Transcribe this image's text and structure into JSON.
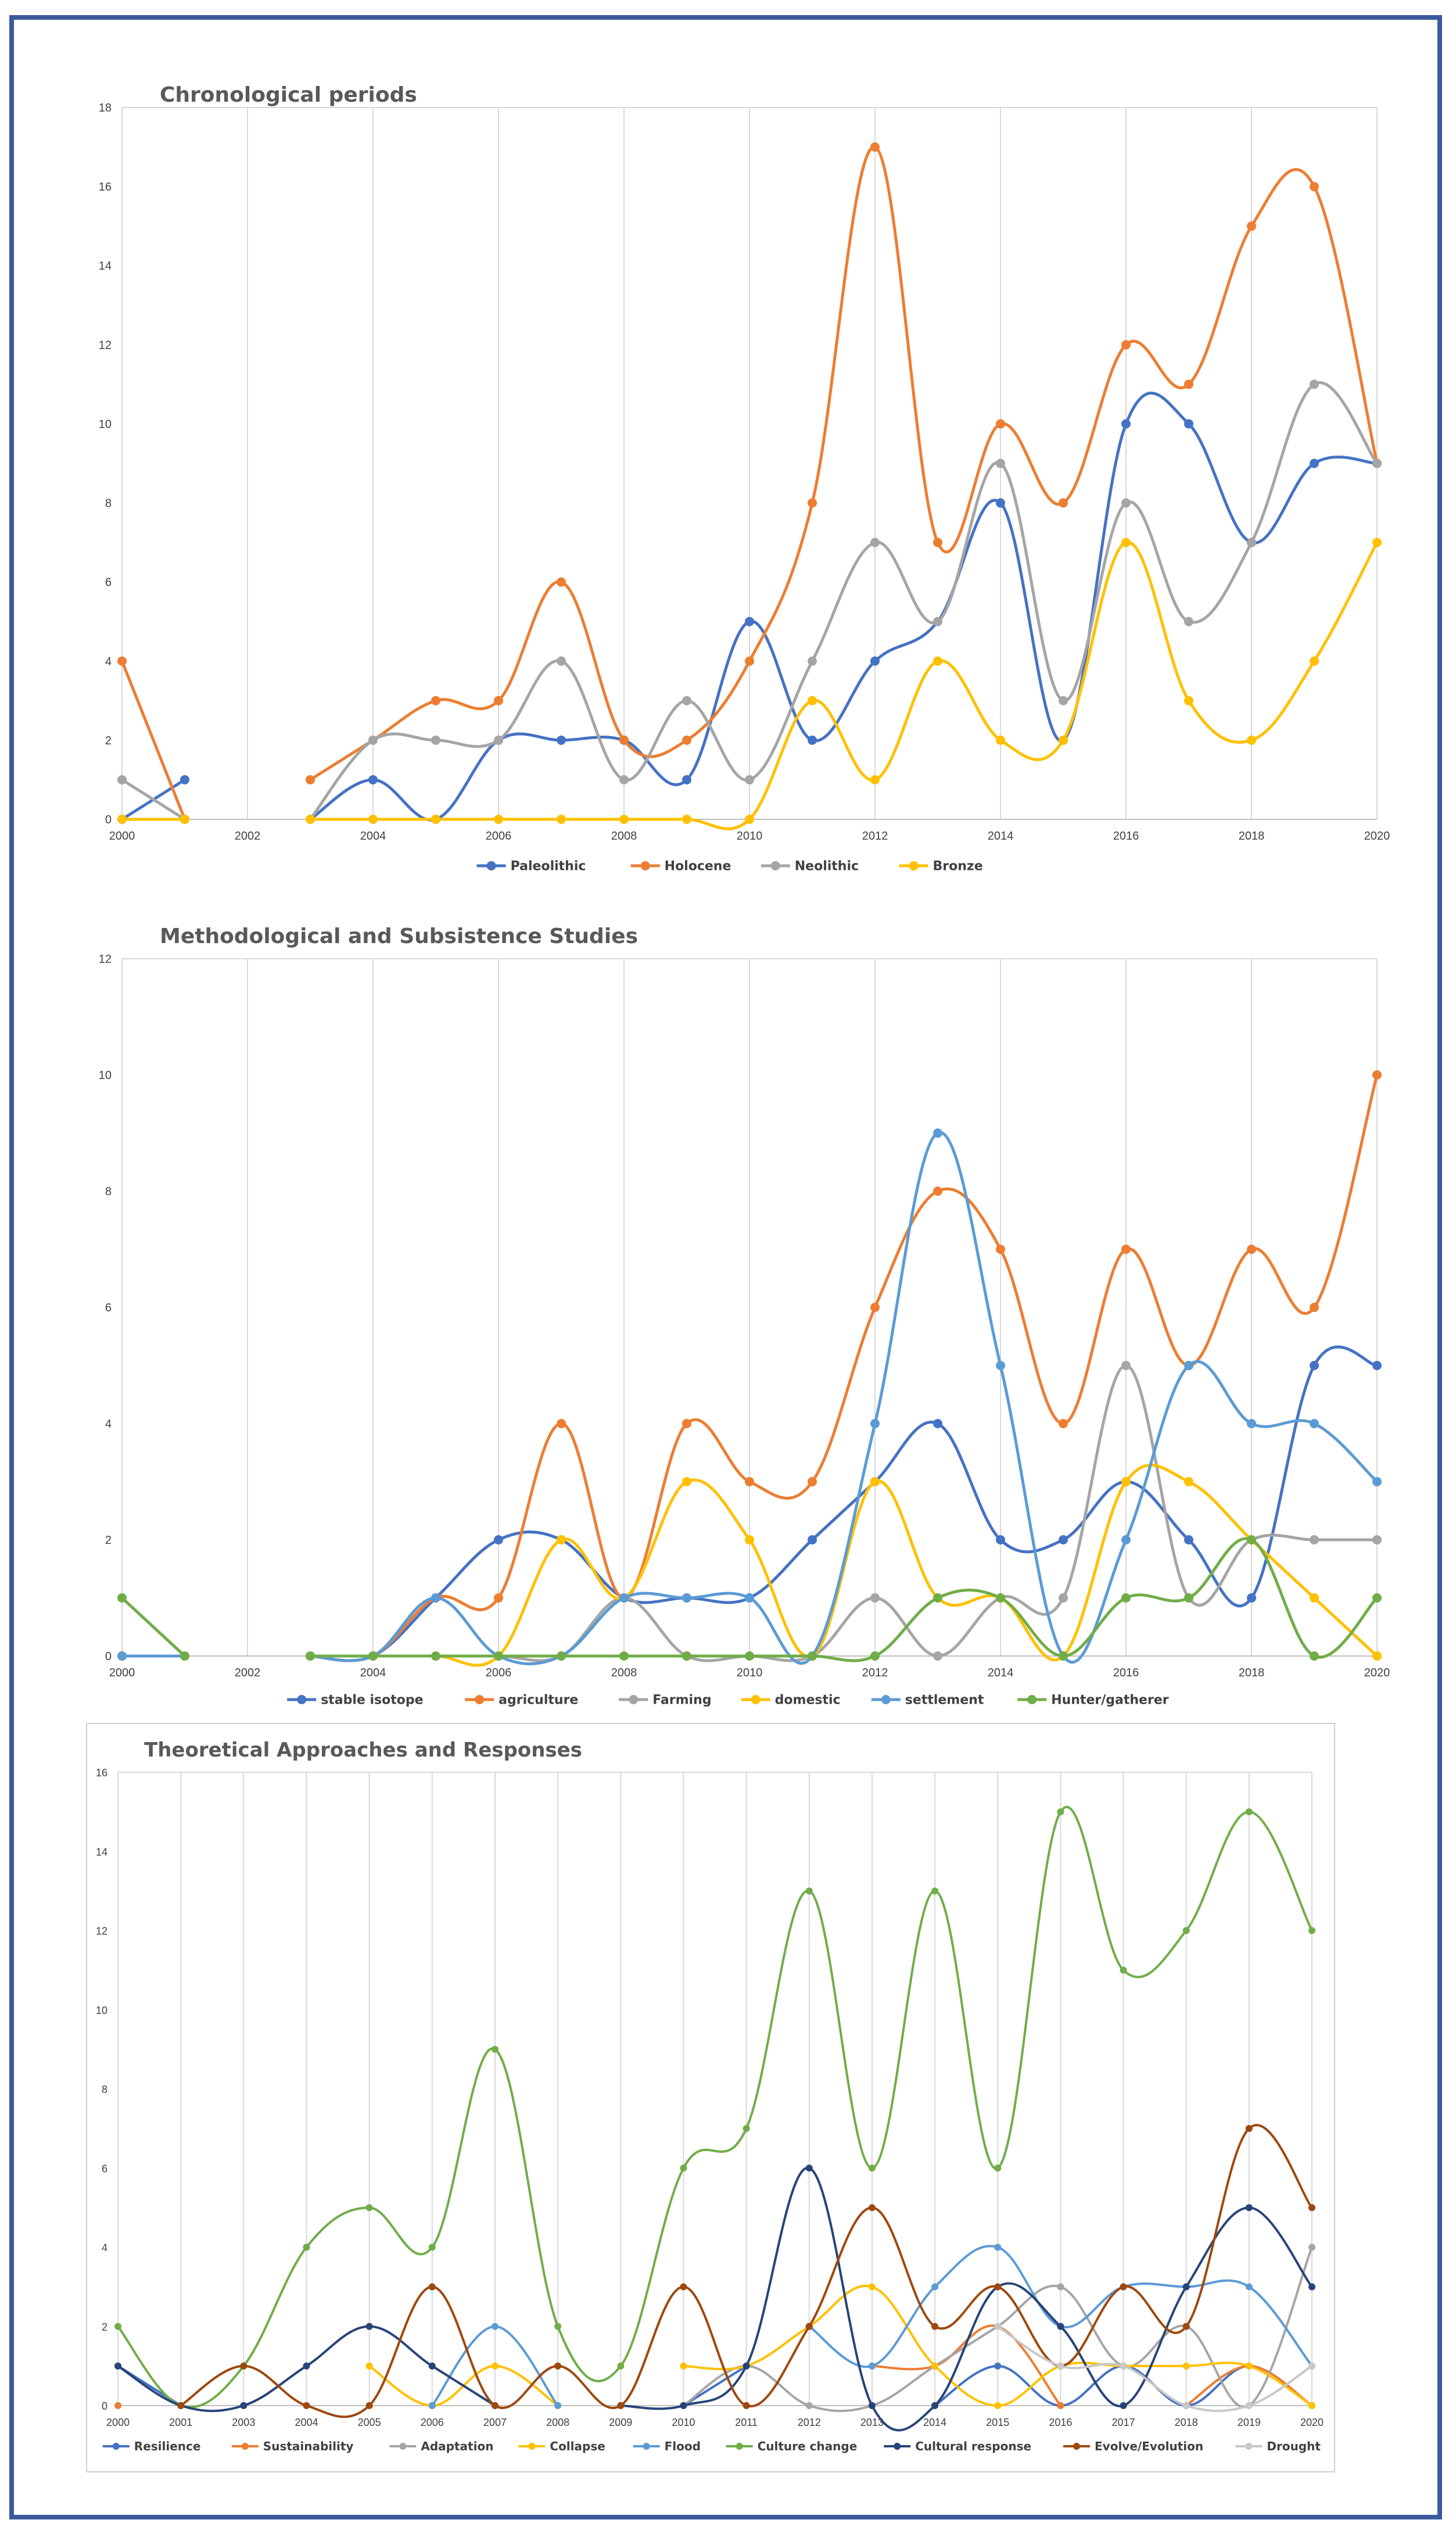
{
  "chart_data": [
    {
      "type": "line",
      "title": "Chronological periods",
      "xlabel": "",
      "ylabel": "",
      "x": [
        2000,
        2001,
        2002,
        2003,
        2004,
        2005,
        2006,
        2007,
        2008,
        2009,
        2010,
        2011,
        2012,
        2013,
        2014,
        2015,
        2016,
        2017,
        2018,
        2019,
        2020
      ],
      "x_ticks": [
        "2000",
        "2002",
        "2004",
        "2006",
        "2008",
        "2010",
        "2012",
        "2014",
        "2016",
        "2018",
        "2020"
      ],
      "y_ticks": [
        "0",
        "2",
        "4",
        "6",
        "8",
        "10",
        "12",
        "14",
        "16",
        "18"
      ],
      "xlim": [
        2000,
        2020
      ],
      "ylim": [
        0,
        18
      ],
      "grid": "vertical",
      "legend_position": "bottom",
      "series": [
        {
          "name": "Paleolithic",
          "color": "#4472c4",
          "values": [
            0,
            1,
            null,
            0,
            1,
            0,
            2,
            2,
            2,
            1,
            5,
            2,
            4,
            5,
            8,
            2,
            10,
            10,
            7,
            9,
            9
          ]
        },
        {
          "name": "Holocene",
          "color": "#ed7d31",
          "values": [
            4,
            0,
            null,
            1,
            2,
            3,
            3,
            6,
            2,
            2,
            4,
            8,
            17,
            7,
            10,
            8,
            12,
            11,
            15,
            16,
            9
          ]
        },
        {
          "name": "Neolithic",
          "color": "#a5a5a5",
          "values": [
            1,
            0,
            null,
            0,
            2,
            2,
            2,
            4,
            1,
            3,
            1,
            4,
            7,
            5,
            9,
            3,
            8,
            5,
            7,
            11,
            9
          ]
        },
        {
          "name": "Bronze",
          "color": "#ffc000",
          "values": [
            0,
            0,
            null,
            0,
            0,
            0,
            0,
            0,
            0,
            0,
            0,
            3,
            1,
            4,
            2,
            2,
            7,
            3,
            2,
            4,
            7
          ]
        }
      ]
    },
    {
      "type": "line",
      "title": "Methodological and Subsistence Studies",
      "xlabel": "",
      "ylabel": "",
      "x": [
        2000,
        2001,
        2002,
        2003,
        2004,
        2005,
        2006,
        2007,
        2008,
        2009,
        2010,
        2011,
        2012,
        2013,
        2014,
        2015,
        2016,
        2017,
        2018,
        2019,
        2020
      ],
      "x_ticks": [
        "2000",
        "2002",
        "2004",
        "2006",
        "2008",
        "2010",
        "2012",
        "2014",
        "2016",
        "2018",
        "2020"
      ],
      "y_ticks": [
        "0",
        "2",
        "4",
        "6",
        "8",
        "10",
        "12"
      ],
      "xlim": [
        2000,
        2020
      ],
      "ylim": [
        0,
        12
      ],
      "grid": "vertical",
      "legend_position": "bottom",
      "series": [
        {
          "name": "stable isotope",
          "color": "#4472c4",
          "values": [
            0,
            0,
            null,
            0,
            0,
            1,
            2,
            2,
            1,
            1,
            1,
            2,
            3,
            4,
            2,
            2,
            3,
            2,
            1,
            5,
            5
          ]
        },
        {
          "name": "agriculture",
          "color": "#ed7d31",
          "values": [
            0,
            0,
            null,
            0,
            0,
            1,
            1,
            4,
            1,
            4,
            3,
            3,
            6,
            8,
            7,
            4,
            7,
            5,
            7,
            6,
            10
          ]
        },
        {
          "name": "Farming",
          "color": "#a5a5a5",
          "values": [
            0,
            0,
            null,
            0,
            0,
            0,
            0,
            0,
            1,
            0,
            0,
            0,
            1,
            0,
            1,
            1,
            5,
            1,
            2,
            2,
            2
          ]
        },
        {
          "name": "domestic",
          "color": "#ffc000",
          "values": [
            0,
            0,
            null,
            0,
            0,
            0,
            0,
            2,
            1,
            3,
            2,
            0,
            3,
            1,
            1,
            0,
            3,
            3,
            2,
            1,
            0
          ]
        },
        {
          "name": "settlement",
          "color": "#5b9bd5",
          "values": [
            0,
            0,
            null,
            0,
            0,
            1,
            0,
            0,
            1,
            1,
            1,
            0,
            4,
            9,
            5,
            0,
            2,
            5,
            4,
            4,
            3
          ]
        },
        {
          "name": "Hunter/gatherer",
          "color": "#70ad47",
          "values": [
            1,
            0,
            null,
            0,
            0,
            0,
            0,
            0,
            0,
            0,
            0,
            0,
            0,
            1,
            1,
            0,
            1,
            1,
            2,
            0,
            1
          ]
        }
      ]
    },
    {
      "type": "line",
      "title": "Theoretical Approaches and Responses",
      "xlabel": "",
      "ylabel": "",
      "x": [
        2000,
        2001,
        2003,
        2004,
        2005,
        2006,
        2007,
        2008,
        2009,
        2010,
        2011,
        2012,
        2013,
        2014,
        2015,
        2016,
        2017,
        2018,
        2019,
        2020
      ],
      "x_ticks": [
        "2000",
        "2001",
        "2003",
        "2004",
        "2005",
        "2006",
        "2007",
        "2008",
        "2009",
        "2010",
        "2011",
        "2012",
        "2013",
        "2014",
        "2015",
        "2016",
        "2017",
        "2018",
        "2019",
        "2020"
      ],
      "y_ticks": [
        "0",
        "2",
        "4",
        "6",
        "8",
        "10",
        "12",
        "14",
        "16"
      ],
      "ylim": [
        0,
        16
      ],
      "grid": "vertical",
      "legend_position": "bottom",
      "series": [
        {
          "name": "Resilience",
          "color": "#4472c4",
          "values": [
            1,
            0,
            null,
            null,
            null,
            null,
            null,
            null,
            null,
            0,
            1,
            null,
            null,
            0,
            1,
            0,
            1,
            0,
            1,
            0
          ]
        },
        {
          "name": "Sustainability",
          "color": "#ed7d31",
          "values": [
            0,
            null,
            null,
            null,
            null,
            null,
            null,
            null,
            null,
            null,
            null,
            null,
            1,
            1,
            2,
            0,
            null,
            0,
            1,
            0
          ]
        },
        {
          "name": "Adaptation",
          "color": "#a5a5a5",
          "values": [
            null,
            null,
            0,
            null,
            null,
            0,
            null,
            0,
            null,
            0,
            1,
            0,
            0,
            1,
            2,
            3,
            1,
            2,
            0,
            4
          ]
        },
        {
          "name": "Collapse",
          "color": "#ffc000",
          "values": [
            null,
            null,
            null,
            null,
            1,
            0,
            1,
            0,
            null,
            1,
            1,
            2,
            3,
            1,
            0,
            1,
            1,
            1,
            1,
            0
          ]
        },
        {
          "name": "Flood",
          "color": "#5b9bd5",
          "values": [
            null,
            null,
            null,
            null,
            null,
            0,
            2,
            0,
            null,
            null,
            null,
            2,
            1,
            3,
            4,
            2,
            3,
            3,
            3,
            1
          ]
        },
        {
          "name": "Culture change",
          "color": "#70ad47",
          "values": [
            2,
            0,
            1,
            4,
            5,
            4,
            9,
            2,
            1,
            6,
            7,
            13,
            6,
            13,
            6,
            15,
            11,
            12,
            15,
            12
          ]
        },
        {
          "name": "Cultural response",
          "color": "#264478",
          "values": [
            1,
            0,
            0,
            1,
            2,
            1,
            0,
            null,
            0,
            0,
            1,
            6,
            0,
            0,
            3,
            2,
            0,
            3,
            5,
            3
          ]
        },
        {
          "name": "Evolve/Evolution",
          "color": "#9e480e",
          "values": [
            null,
            0,
            1,
            0,
            0,
            3,
            0,
            1,
            0,
            3,
            0,
            2,
            5,
            2,
            3,
            1,
            3,
            2,
            7,
            5
          ]
        },
        {
          "name": "Drought",
          "color": "#c8c8c8",
          "values": [
            null,
            null,
            null,
            null,
            null,
            null,
            null,
            null,
            null,
            null,
            null,
            null,
            null,
            null,
            2,
            1,
            1,
            0,
            0,
            1
          ]
        }
      ]
    }
  ]
}
